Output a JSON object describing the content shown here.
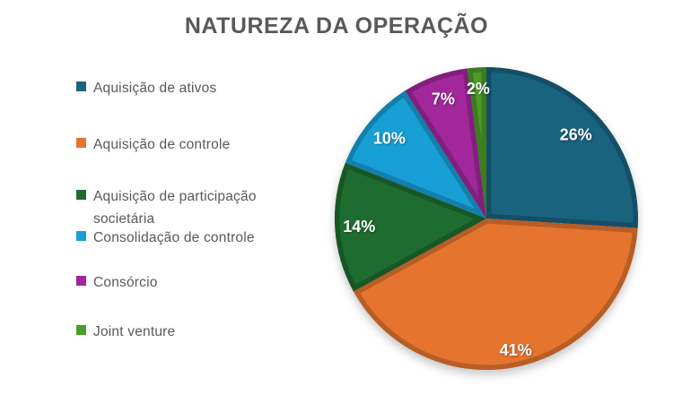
{
  "chart_data": {
    "type": "pie",
    "title": "NATUREZA DA OPERAÇÃO",
    "categories": [
      "Aquisição de ativos",
      "Aquisição de controle",
      "Aquisição de participação societária",
      "Consolidação de controle",
      "Consórcio",
      "Joint venture"
    ],
    "values": [
      26,
      41,
      14,
      10,
      7,
      2
    ],
    "labels": [
      "26%",
      "41%",
      "14%",
      "10%",
      "7%",
      "2%"
    ],
    "colors": [
      "#19637F",
      "#E5742F",
      "#1E6C30",
      "#189FD6",
      "#A1279B",
      "#4C9C28"
    ],
    "label_color": "#FFFFFF",
    "title_color": "#595959",
    "legend_text_color": "#595959",
    "background": "#FFFFFF",
    "legend_position": "left",
    "start_angle_deg": 0,
    "direction": "clockwise",
    "grid": false
  }
}
